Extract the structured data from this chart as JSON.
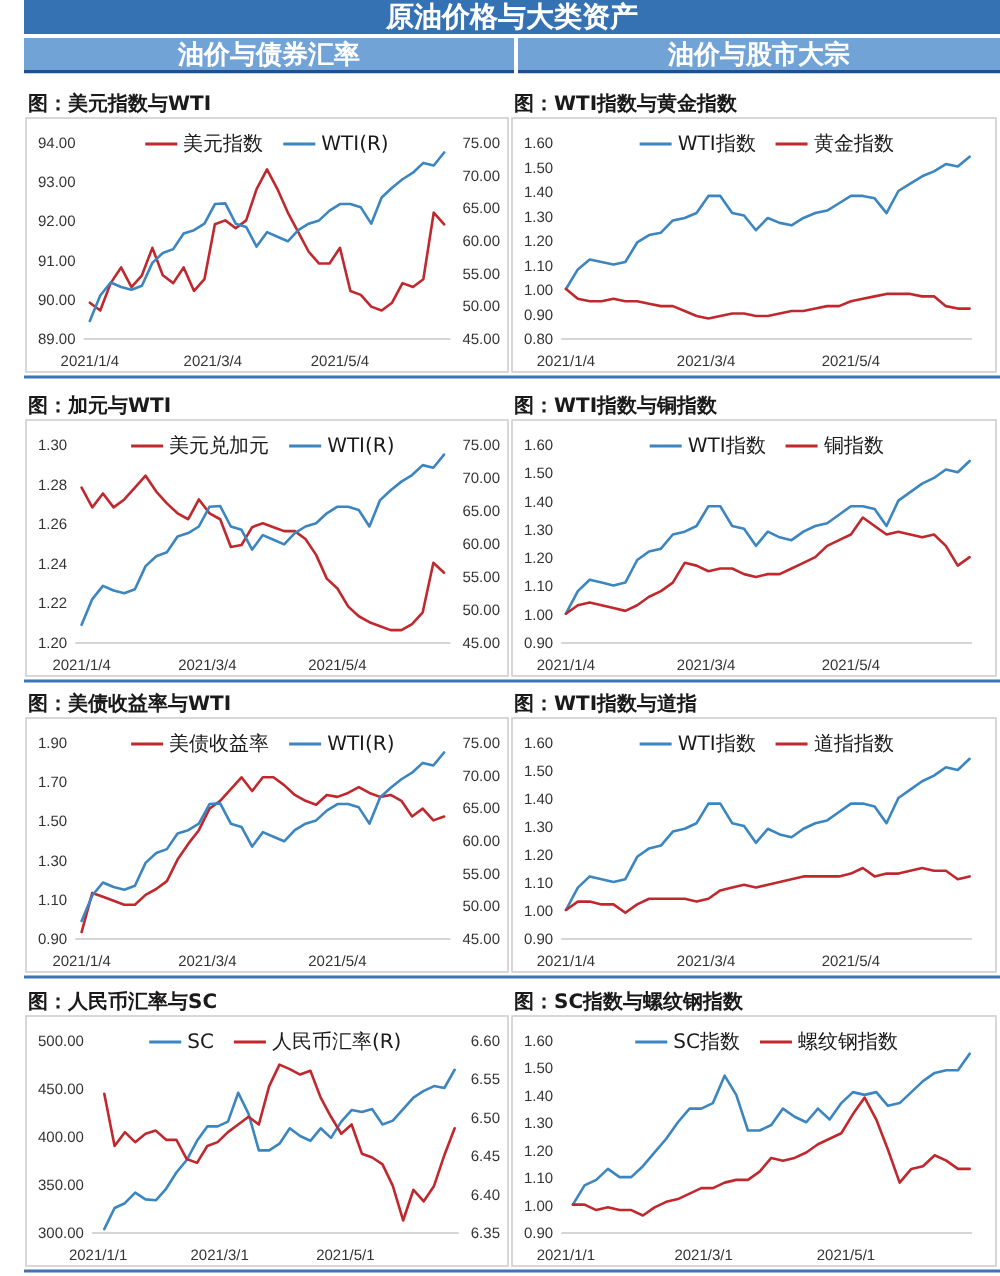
{
  "chart_data": [
    {
      "type": "line",
      "title": "图：美元指数与WTI",
      "annotations": [
        "原油价格与大类资产",
        "油价与债券汇率"
      ],
      "legend": "top",
      "x": [
        "2021-01-04",
        "2021-01-09",
        "2021-01-14",
        "2021-01-19",
        "2021-01-24",
        "2021-01-29",
        "2021-02-03",
        "2021-02-08",
        "2021-02-13",
        "2021-02-18",
        "2021-02-23",
        "2021-02-28",
        "2021-03-05",
        "2021-03-10",
        "2021-03-15",
        "2021-03-20",
        "2021-03-25",
        "2021-03-30",
        "2021-04-04",
        "2021-04-09",
        "2021-04-14",
        "2021-04-19",
        "2021-04-24",
        "2021-04-29",
        "2021-05-04",
        "2021-05-09",
        "2021-05-14",
        "2021-05-19",
        "2021-05-24",
        "2021-05-29",
        "2021-06-03",
        "2021-06-08",
        "2021-06-13",
        "2021-06-18",
        "2021-06-23"
      ],
      "xlim": [
        "2021-01-01",
        "2021-06-26"
      ],
      "xticks": [
        {
          "value": "2021-01-04",
          "label": "2021/1/4"
        },
        {
          "value": "2021-03-04",
          "label": "2021/3/4"
        },
        {
          "value": "2021-05-04",
          "label": "2021/5/4"
        }
      ],
      "ylim": [
        89,
        94
      ],
      "yticks": [
        {
          "value": 89,
          "label": "89.00"
        },
        {
          "value": 90,
          "label": "90.00"
        },
        {
          "value": 91,
          "label": "91.00"
        },
        {
          "value": 92,
          "label": "92.00"
        },
        {
          "value": 93,
          "label": "93.00"
        },
        {
          "value": 94,
          "label": "94.00"
        }
      ],
      "y2lim": [
        45,
        75
      ],
      "y2ticks": [
        {
          "value": 45,
          "label": "45.00"
        },
        {
          "value": 50,
          "label": "50.00"
        },
        {
          "value": 55,
          "label": "55.00"
        },
        {
          "value": 60,
          "label": "60.00"
        },
        {
          "value": 65,
          "label": "65.00"
        },
        {
          "value": 70,
          "label": "70.00"
        },
        {
          "value": 75,
          "label": "75.00"
        }
      ],
      "series": [
        {
          "name": "美元指数",
          "color": "#c0282e",
          "values": [
            89.9,
            89.7,
            90.4,
            90.8,
            90.3,
            90.6,
            91.3,
            90.6,
            90.4,
            90.8,
            90.2,
            90.5,
            91.9,
            92.0,
            91.8,
            92.0,
            92.8,
            93.3,
            92.8,
            92.2,
            91.7,
            91.2,
            90.9,
            90.9,
            91.3,
            90.2,
            90.1,
            89.8,
            89.7,
            89.9,
            90.4,
            90.3,
            90.5,
            92.2,
            91.9
          ]
        },
        {
          "name": "WTI(R)",
          "color": "#3b85c0",
          "axis": "y2",
          "values": [
            47.6,
            51.5,
            53.5,
            52.8,
            52.4,
            53.0,
            56.5,
            58.0,
            58.6,
            61.0,
            61.5,
            62.5,
            65.5,
            65.6,
            62.5,
            62.0,
            59.0,
            61.2,
            60.5,
            59.8,
            61.5,
            62.5,
            63.0,
            64.5,
            65.5,
            65.5,
            65.0,
            62.5,
            66.5,
            68.0,
            69.3,
            70.3,
            71.8,
            71.4,
            73.4
          ]
        }
      ]
    },
    {
      "type": "line",
      "title": "图：WTI指数与黄金指数",
      "annotations": [
        "油价与股市大宗"
      ],
      "legend": "top",
      "x": [
        "2021-01-04",
        "2021-01-09",
        "2021-01-14",
        "2021-01-19",
        "2021-01-24",
        "2021-01-29",
        "2021-02-03",
        "2021-02-08",
        "2021-02-13",
        "2021-02-18",
        "2021-02-23",
        "2021-02-28",
        "2021-03-05",
        "2021-03-10",
        "2021-03-15",
        "2021-03-20",
        "2021-03-25",
        "2021-03-30",
        "2021-04-04",
        "2021-04-09",
        "2021-04-14",
        "2021-04-19",
        "2021-04-24",
        "2021-04-29",
        "2021-05-04",
        "2021-05-09",
        "2021-05-14",
        "2021-05-19",
        "2021-05-24",
        "2021-05-29",
        "2021-06-03",
        "2021-06-08",
        "2021-06-13",
        "2021-06-18",
        "2021-06-23"
      ],
      "xlim": [
        "2021-01-02",
        "2021-06-24"
      ],
      "xticks": [
        {
          "value": "2021-01-04",
          "label": "2021/1/4"
        },
        {
          "value": "2021-03-04",
          "label": "2021/3/4"
        },
        {
          "value": "2021-05-04",
          "label": "2021/5/4"
        }
      ],
      "ylim": [
        0.8,
        1.6
      ],
      "yticks": [
        {
          "value": 0.8,
          "label": "0.80"
        },
        {
          "value": 0.9,
          "label": "0.90"
        },
        {
          "value": 1.0,
          "label": "1.00"
        },
        {
          "value": 1.1,
          "label": "1.10"
        },
        {
          "value": 1.2,
          "label": "1.20"
        },
        {
          "value": 1.3,
          "label": "1.30"
        },
        {
          "value": 1.4,
          "label": "1.40"
        },
        {
          "value": 1.5,
          "label": "1.50"
        },
        {
          "value": 1.6,
          "label": "1.60"
        }
      ],
      "series": [
        {
          "name": "WTI指数",
          "color": "#3b85c0",
          "values": [
            1.0,
            1.08,
            1.12,
            1.11,
            1.1,
            1.11,
            1.19,
            1.22,
            1.23,
            1.28,
            1.29,
            1.31,
            1.38,
            1.38,
            1.31,
            1.3,
            1.24,
            1.29,
            1.27,
            1.26,
            1.29,
            1.31,
            1.32,
            1.35,
            1.38,
            1.38,
            1.37,
            1.31,
            1.4,
            1.43,
            1.46,
            1.48,
            1.51,
            1.5,
            1.54
          ]
        },
        {
          "name": "黄金指数",
          "color": "#c0282e",
          "values": [
            1.0,
            0.96,
            0.95,
            0.95,
            0.96,
            0.95,
            0.95,
            0.94,
            0.93,
            0.93,
            0.91,
            0.89,
            0.88,
            0.89,
            0.9,
            0.9,
            0.89,
            0.89,
            0.9,
            0.91,
            0.91,
            0.92,
            0.93,
            0.93,
            0.95,
            0.96,
            0.97,
            0.98,
            0.98,
            0.98,
            0.97,
            0.97,
            0.93,
            0.92,
            0.92
          ]
        }
      ]
    },
    {
      "type": "line",
      "title": "图：加元与WTI",
      "legend": "top",
      "x": [
        "2021-01-04",
        "2021-01-09",
        "2021-01-14",
        "2021-01-19",
        "2021-01-24",
        "2021-01-29",
        "2021-02-03",
        "2021-02-08",
        "2021-02-13",
        "2021-02-18",
        "2021-02-23",
        "2021-02-28",
        "2021-03-05",
        "2021-03-10",
        "2021-03-15",
        "2021-03-20",
        "2021-03-25",
        "2021-03-30",
        "2021-04-04",
        "2021-04-09",
        "2021-04-14",
        "2021-04-19",
        "2021-04-24",
        "2021-04-29",
        "2021-05-04",
        "2021-05-09",
        "2021-05-14",
        "2021-05-19",
        "2021-05-24",
        "2021-05-29",
        "2021-06-03",
        "2021-06-08",
        "2021-06-13",
        "2021-06-18",
        "2021-06-23"
      ],
      "xlim": [
        "2021-01-01",
        "2021-06-26"
      ],
      "xticks": [
        {
          "value": "2021-01-04",
          "label": "2021/1/4"
        },
        {
          "value": "2021-03-04",
          "label": "2021/3/4"
        },
        {
          "value": "2021-05-04",
          "label": "2021/5/4"
        }
      ],
      "ylim": [
        1.2,
        1.3
      ],
      "yticks": [
        {
          "value": 1.2,
          "label": "1.20"
        },
        {
          "value": 1.22,
          "label": "1.22"
        },
        {
          "value": 1.24,
          "label": "1.24"
        },
        {
          "value": 1.26,
          "label": "1.26"
        },
        {
          "value": 1.28,
          "label": "1.28"
        },
        {
          "value": 1.3,
          "label": "1.30"
        }
      ],
      "y2lim": [
        45,
        75
      ],
      "y2ticks": [
        {
          "value": 45,
          "label": "45.00"
        },
        {
          "value": 50,
          "label": "50.00"
        },
        {
          "value": 55,
          "label": "55.00"
        },
        {
          "value": 60,
          "label": "60.00"
        },
        {
          "value": 65,
          "label": "65.00"
        },
        {
          "value": 70,
          "label": "70.00"
        },
        {
          "value": 75,
          "label": "75.00"
        }
      ],
      "series": [
        {
          "name": "美元兑加元",
          "color": "#c0282e",
          "values": [
            1.278,
            1.268,
            1.275,
            1.268,
            1.272,
            1.278,
            1.284,
            1.276,
            1.27,
            1.265,
            1.262,
            1.272,
            1.265,
            1.262,
            1.248,
            1.249,
            1.258,
            1.26,
            1.258,
            1.256,
            1.256,
            1.252,
            1.244,
            1.232,
            1.227,
            1.218,
            1.213,
            1.21,
            1.208,
            1.206,
            1.206,
            1.209,
            1.215,
            1.24,
            1.235
          ]
        },
        {
          "name": "WTI(R)",
          "color": "#3b85c0",
          "axis": "y2",
          "values": [
            47.6,
            51.5,
            53.5,
            52.8,
            52.4,
            53.0,
            56.5,
            58.0,
            58.6,
            61.0,
            61.5,
            62.5,
            65.5,
            65.6,
            62.5,
            62.0,
            59.0,
            61.2,
            60.5,
            59.8,
            61.5,
            62.5,
            63.0,
            64.5,
            65.5,
            65.5,
            65.0,
            62.5,
            66.5,
            68.0,
            69.3,
            70.3,
            71.8,
            71.4,
            73.4
          ]
        }
      ]
    },
    {
      "type": "line",
      "title": "图：WTI指数与铜指数",
      "legend": "top",
      "x": [
        "2021-01-04",
        "2021-01-09",
        "2021-01-14",
        "2021-01-19",
        "2021-01-24",
        "2021-01-29",
        "2021-02-03",
        "2021-02-08",
        "2021-02-13",
        "2021-02-18",
        "2021-02-23",
        "2021-02-28",
        "2021-03-05",
        "2021-03-10",
        "2021-03-15",
        "2021-03-20",
        "2021-03-25",
        "2021-03-30",
        "2021-04-04",
        "2021-04-09",
        "2021-04-14",
        "2021-04-19",
        "2021-04-24",
        "2021-04-29",
        "2021-05-04",
        "2021-05-09",
        "2021-05-14",
        "2021-05-19",
        "2021-05-24",
        "2021-05-29",
        "2021-06-03",
        "2021-06-08",
        "2021-06-13",
        "2021-06-18",
        "2021-06-23"
      ],
      "xlim": [
        "2021-01-02",
        "2021-06-24"
      ],
      "xticks": [
        {
          "value": "2021-01-04",
          "label": "2021/1/4"
        },
        {
          "value": "2021-03-04",
          "label": "2021/3/4"
        },
        {
          "value": "2021-05-04",
          "label": "2021/5/4"
        }
      ],
      "ylim": [
        0.9,
        1.6
      ],
      "yticks": [
        {
          "value": 0.9,
          "label": "0.90"
        },
        {
          "value": 1.0,
          "label": "1.00"
        },
        {
          "value": 1.1,
          "label": "1.10"
        },
        {
          "value": 1.2,
          "label": "1.20"
        },
        {
          "value": 1.3,
          "label": "1.30"
        },
        {
          "value": 1.4,
          "label": "1.40"
        },
        {
          "value": 1.5,
          "label": "1.50"
        },
        {
          "value": 1.6,
          "label": "1.60"
        }
      ],
      "series": [
        {
          "name": "WTI指数",
          "color": "#3b85c0",
          "values": [
            1.0,
            1.08,
            1.12,
            1.11,
            1.1,
            1.11,
            1.19,
            1.22,
            1.23,
            1.28,
            1.29,
            1.31,
            1.38,
            1.38,
            1.31,
            1.3,
            1.24,
            1.29,
            1.27,
            1.26,
            1.29,
            1.31,
            1.32,
            1.35,
            1.38,
            1.38,
            1.37,
            1.31,
            1.4,
            1.43,
            1.46,
            1.48,
            1.51,
            1.5,
            1.54
          ]
        },
        {
          "name": "铜指数",
          "color": "#c0282e",
          "values": [
            1.0,
            1.03,
            1.04,
            1.03,
            1.02,
            1.01,
            1.03,
            1.06,
            1.08,
            1.11,
            1.18,
            1.17,
            1.15,
            1.16,
            1.16,
            1.14,
            1.13,
            1.14,
            1.14,
            1.16,
            1.18,
            1.2,
            1.24,
            1.26,
            1.28,
            1.34,
            1.31,
            1.28,
            1.29,
            1.28,
            1.27,
            1.28,
            1.24,
            1.17,
            1.2
          ]
        }
      ]
    },
    {
      "type": "line",
      "title": "图：美债收益率与WTI",
      "legend": "top",
      "x": [
        "2021-01-04",
        "2021-01-09",
        "2021-01-14",
        "2021-01-19",
        "2021-01-24",
        "2021-01-29",
        "2021-02-03",
        "2021-02-08",
        "2021-02-13",
        "2021-02-18",
        "2021-02-23",
        "2021-02-28",
        "2021-03-05",
        "2021-03-10",
        "2021-03-15",
        "2021-03-20",
        "2021-03-25",
        "2021-03-30",
        "2021-04-04",
        "2021-04-09",
        "2021-04-14",
        "2021-04-19",
        "2021-04-24",
        "2021-04-29",
        "2021-05-04",
        "2021-05-09",
        "2021-05-14",
        "2021-05-19",
        "2021-05-24",
        "2021-05-29",
        "2021-06-03",
        "2021-06-08",
        "2021-06-13",
        "2021-06-18",
        "2021-06-23"
      ],
      "xlim": [
        "2021-01-01",
        "2021-06-26"
      ],
      "xticks": [
        {
          "value": "2021-01-04",
          "label": "2021/1/4"
        },
        {
          "value": "2021-03-04",
          "label": "2021/3/4"
        },
        {
          "value": "2021-05-04",
          "label": "2021/5/4"
        }
      ],
      "ylim": [
        0.9,
        1.9
      ],
      "yticks": [
        {
          "value": 0.9,
          "label": "0.90"
        },
        {
          "value": 1.1,
          "label": "1.10"
        },
        {
          "value": 1.3,
          "label": "1.30"
        },
        {
          "value": 1.5,
          "label": "1.50"
        },
        {
          "value": 1.7,
          "label": "1.70"
        },
        {
          "value": 1.9,
          "label": "1.90"
        }
      ],
      "y2lim": [
        45,
        75
      ],
      "y2ticks": [
        {
          "value": 45,
          "label": "45.00"
        },
        {
          "value": 50,
          "label": "50.00"
        },
        {
          "value": 55,
          "label": "55.00"
        },
        {
          "value": 60,
          "label": "60.00"
        },
        {
          "value": 65,
          "label": "65.00"
        },
        {
          "value": 70,
          "label": "70.00"
        },
        {
          "value": 75,
          "label": "75.00"
        }
      ],
      "series": [
        {
          "name": "美债收益率",
          "color": "#c0282e",
          "values": [
            0.93,
            1.13,
            1.11,
            1.09,
            1.07,
            1.07,
            1.12,
            1.15,
            1.19,
            1.3,
            1.38,
            1.45,
            1.56,
            1.6,
            1.66,
            1.72,
            1.65,
            1.72,
            1.72,
            1.68,
            1.63,
            1.6,
            1.58,
            1.63,
            1.62,
            1.64,
            1.67,
            1.64,
            1.62,
            1.63,
            1.6,
            1.52,
            1.56,
            1.5,
            1.52
          ]
        },
        {
          "name": "WTI(R)",
          "color": "#3b85c0",
          "axis": "y2",
          "values": [
            47.6,
            51.5,
            53.5,
            52.8,
            52.4,
            53.0,
            56.5,
            58.0,
            58.6,
            61.0,
            61.5,
            62.5,
            65.5,
            65.6,
            62.5,
            62.0,
            59.0,
            61.2,
            60.5,
            59.8,
            61.5,
            62.5,
            63.0,
            64.5,
            65.5,
            65.5,
            65.0,
            62.5,
            66.5,
            68.0,
            69.3,
            70.3,
            71.8,
            71.4,
            73.4
          ]
        }
      ]
    },
    {
      "type": "line",
      "title": "图：WTI指数与道指",
      "legend": "top",
      "x": [
        "2021-01-04",
        "2021-01-09",
        "2021-01-14",
        "2021-01-19",
        "2021-01-24",
        "2021-01-29",
        "2021-02-03",
        "2021-02-08",
        "2021-02-13",
        "2021-02-18",
        "2021-02-23",
        "2021-02-28",
        "2021-03-05",
        "2021-03-10",
        "2021-03-15",
        "2021-03-20",
        "2021-03-25",
        "2021-03-30",
        "2021-04-04",
        "2021-04-09",
        "2021-04-14",
        "2021-04-19",
        "2021-04-24",
        "2021-04-29",
        "2021-05-04",
        "2021-05-09",
        "2021-05-14",
        "2021-05-19",
        "2021-05-24",
        "2021-05-29",
        "2021-06-03",
        "2021-06-08",
        "2021-06-13",
        "2021-06-18",
        "2021-06-23"
      ],
      "xlim": [
        "2021-01-02",
        "2021-06-24"
      ],
      "xticks": [
        {
          "value": "2021-01-04",
          "label": "2021/1/4"
        },
        {
          "value": "2021-03-04",
          "label": "2021/3/4"
        },
        {
          "value": "2021-05-04",
          "label": "2021/5/4"
        }
      ],
      "ylim": [
        0.9,
        1.6
      ],
      "yticks": [
        {
          "value": 0.9,
          "label": "0.90"
        },
        {
          "value": 1.0,
          "label": "1.00"
        },
        {
          "value": 1.1,
          "label": "1.10"
        },
        {
          "value": 1.2,
          "label": "1.20"
        },
        {
          "value": 1.3,
          "label": "1.30"
        },
        {
          "value": 1.4,
          "label": "1.40"
        },
        {
          "value": 1.5,
          "label": "1.50"
        },
        {
          "value": 1.6,
          "label": "1.60"
        }
      ],
      "series": [
        {
          "name": "WTI指数",
          "color": "#3b85c0",
          "values": [
            1.0,
            1.08,
            1.12,
            1.11,
            1.1,
            1.11,
            1.19,
            1.22,
            1.23,
            1.28,
            1.29,
            1.31,
            1.38,
            1.38,
            1.31,
            1.3,
            1.24,
            1.29,
            1.27,
            1.26,
            1.29,
            1.31,
            1.32,
            1.35,
            1.38,
            1.38,
            1.37,
            1.31,
            1.4,
            1.43,
            1.46,
            1.48,
            1.51,
            1.5,
            1.54
          ]
        },
        {
          "name": "道指指数",
          "color": "#c0282e",
          "values": [
            1.0,
            1.03,
            1.03,
            1.02,
            1.02,
            0.99,
            1.02,
            1.04,
            1.04,
            1.04,
            1.04,
            1.03,
            1.04,
            1.07,
            1.08,
            1.09,
            1.08,
            1.09,
            1.1,
            1.11,
            1.12,
            1.12,
            1.12,
            1.12,
            1.13,
            1.15,
            1.12,
            1.13,
            1.13,
            1.14,
            1.15,
            1.14,
            1.14,
            1.11,
            1.12
          ]
        }
      ]
    },
    {
      "type": "line",
      "title": "图：人民币汇率与SC",
      "legend": "top",
      "x": [
        "2021-01-04",
        "2021-01-09",
        "2021-01-14",
        "2021-01-19",
        "2021-01-24",
        "2021-01-29",
        "2021-02-03",
        "2021-02-08",
        "2021-02-13",
        "2021-02-18",
        "2021-02-23",
        "2021-02-28",
        "2021-03-05",
        "2021-03-10",
        "2021-03-15",
        "2021-03-20",
        "2021-03-25",
        "2021-03-30",
        "2021-04-04",
        "2021-04-09",
        "2021-04-14",
        "2021-04-19",
        "2021-04-24",
        "2021-04-29",
        "2021-05-04",
        "2021-05-09",
        "2021-05-14",
        "2021-05-19",
        "2021-05-24",
        "2021-05-29",
        "2021-06-03",
        "2021-06-08",
        "2021-06-13",
        "2021-06-18",
        "2021-06-23"
      ],
      "xlim": [
        "2020-12-29",
        "2021-06-25"
      ],
      "xticks": [
        {
          "value": "2021-01-01",
          "label": "2021/1/1"
        },
        {
          "value": "2021-03-01",
          "label": "2021/3/1"
        },
        {
          "value": "2021-05-01",
          "label": "2021/5/1"
        }
      ],
      "ylim": [
        300,
        500
      ],
      "yticks": [
        {
          "value": 300,
          "label": "300.00"
        },
        {
          "value": 350,
          "label": "350.00"
        },
        {
          "value": 400,
          "label": "400.00"
        },
        {
          "value": 450,
          "label": "450.00"
        },
        {
          "value": 500,
          "label": "500.00"
        }
      ],
      "y2lim": [
        6.35,
        6.6
      ],
      "y2ticks": [
        {
          "value": 6.35,
          "label": "6.35"
        },
        {
          "value": 6.4,
          "label": "6.40"
        },
        {
          "value": 6.45,
          "label": "6.45"
        },
        {
          "value": 6.5,
          "label": "6.50"
        },
        {
          "value": 6.55,
          "label": "6.55"
        },
        {
          "value": 6.6,
          "label": "6.60"
        }
      ],
      "series": [
        {
          "name": "SC",
          "color": "#3b85c0",
          "values": [
            303,
            325,
            330,
            341,
            334,
            333,
            345,
            362,
            375,
            395,
            410,
            410,
            415,
            445,
            423,
            385,
            385,
            392,
            408,
            400,
            395,
            408,
            398,
            415,
            427,
            425,
            428,
            412,
            416,
            428,
            440,
            447,
            452,
            450,
            469
          ]
        },
        {
          "name": "人民币汇率(R)",
          "color": "#c0282e",
          "axis": "y2",
          "values": [
            6.53,
            6.462,
            6.48,
            6.467,
            6.478,
            6.482,
            6.47,
            6.47,
            6.445,
            6.44,
            6.462,
            6.467,
            6.48,
            6.49,
            6.5,
            6.49,
            6.54,
            6.568,
            6.562,
            6.555,
            6.56,
            6.525,
            6.5,
            6.478,
            6.49,
            6.452,
            6.447,
            6.438,
            6.41,
            6.365,
            6.405,
            6.39,
            6.41,
            6.45,
            6.485
          ]
        }
      ]
    },
    {
      "type": "line",
      "title": "图：SC指数与螺纹钢指数",
      "legend": "top",
      "x": [
        "2021-01-04",
        "2021-01-09",
        "2021-01-14",
        "2021-01-19",
        "2021-01-24",
        "2021-01-29",
        "2021-02-03",
        "2021-02-08",
        "2021-02-13",
        "2021-02-18",
        "2021-02-23",
        "2021-02-28",
        "2021-03-05",
        "2021-03-10",
        "2021-03-15",
        "2021-03-20",
        "2021-03-25",
        "2021-03-30",
        "2021-04-04",
        "2021-04-09",
        "2021-04-14",
        "2021-04-19",
        "2021-04-24",
        "2021-04-29",
        "2021-05-04",
        "2021-05-09",
        "2021-05-14",
        "2021-05-19",
        "2021-05-24",
        "2021-05-29",
        "2021-06-03",
        "2021-06-08",
        "2021-06-13",
        "2021-06-18",
        "2021-06-23"
      ],
      "xlim": [
        "2020-12-30",
        "2021-06-24"
      ],
      "xticks": [
        {
          "value": "2021-01-01",
          "label": "2021/1/1"
        },
        {
          "value": "2021-03-01",
          "label": "2021/3/1"
        },
        {
          "value": "2021-05-01",
          "label": "2021/5/1"
        }
      ],
      "ylim": [
        0.9,
        1.6
      ],
      "yticks": [
        {
          "value": 0.9,
          "label": "0.90"
        },
        {
          "value": 1.0,
          "label": "1.00"
        },
        {
          "value": 1.1,
          "label": "1.10"
        },
        {
          "value": 1.2,
          "label": "1.20"
        },
        {
          "value": 1.3,
          "label": "1.30"
        },
        {
          "value": 1.4,
          "label": "1.40"
        },
        {
          "value": 1.5,
          "label": "1.50"
        },
        {
          "value": 1.6,
          "label": "1.60"
        }
      ],
      "series": [
        {
          "name": "SC指数",
          "color": "#3b85c0",
          "values": [
            1.0,
            1.07,
            1.09,
            1.13,
            1.1,
            1.1,
            1.14,
            1.19,
            1.24,
            1.3,
            1.35,
            1.35,
            1.37,
            1.47,
            1.4,
            1.27,
            1.27,
            1.29,
            1.35,
            1.32,
            1.3,
            1.35,
            1.31,
            1.37,
            1.41,
            1.4,
            1.41,
            1.36,
            1.37,
            1.41,
            1.45,
            1.48,
            1.49,
            1.49,
            1.55
          ]
        },
        {
          "name": "螺纹钢指数",
          "color": "#c0282e",
          "values": [
            1.0,
            1.0,
            0.98,
            0.99,
            0.98,
            0.98,
            0.96,
            0.99,
            1.01,
            1.02,
            1.04,
            1.06,
            1.06,
            1.08,
            1.09,
            1.09,
            1.12,
            1.17,
            1.16,
            1.17,
            1.19,
            1.22,
            1.24,
            1.26,
            1.33,
            1.39,
            1.31,
            1.2,
            1.08,
            1.13,
            1.14,
            1.18,
            1.16,
            1.13,
            1.13
          ]
        }
      ]
    }
  ]
}
